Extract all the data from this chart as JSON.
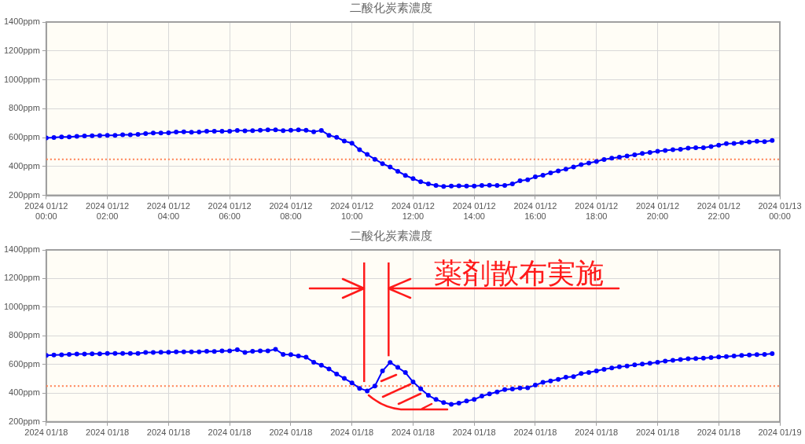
{
  "chart_data": [
    {
      "type": "line",
      "title": "二酸化炭素濃度",
      "x": [
        "2024-01-12T00:00",
        "2024-01-12T00:15",
        "2024-01-12T00:30",
        "2024-01-12T00:45",
        "2024-01-12T01:00",
        "2024-01-12T01:15",
        "2024-01-12T01:30",
        "2024-01-12T01:45",
        "2024-01-12T02:00",
        "2024-01-12T02:15",
        "2024-01-12T02:30",
        "2024-01-12T02:45",
        "2024-01-12T03:00",
        "2024-01-12T03:15",
        "2024-01-12T03:30",
        "2024-01-12T03:45",
        "2024-01-12T04:00",
        "2024-01-12T04:15",
        "2024-01-12T04:30",
        "2024-01-12T04:45",
        "2024-01-12T05:00",
        "2024-01-12T05:15",
        "2024-01-12T05:30",
        "2024-01-12T05:45",
        "2024-01-12T06:00",
        "2024-01-12T06:15",
        "2024-01-12T06:30",
        "2024-01-12T06:45",
        "2024-01-12T07:00",
        "2024-01-12T07:15",
        "2024-01-12T07:30",
        "2024-01-12T07:45",
        "2024-01-12T08:00",
        "2024-01-12T08:15",
        "2024-01-12T08:30",
        "2024-01-12T08:45",
        "2024-01-12T09:00",
        "2024-01-12T09:15",
        "2024-01-12T09:30",
        "2024-01-12T09:45",
        "2024-01-12T10:00",
        "2024-01-12T10:15",
        "2024-01-12T10:30",
        "2024-01-12T10:45",
        "2024-01-12T11:00",
        "2024-01-12T11:15",
        "2024-01-12T11:30",
        "2024-01-12T11:45",
        "2024-01-12T12:00",
        "2024-01-12T12:15",
        "2024-01-12T12:30",
        "2024-01-12T12:45",
        "2024-01-12T13:00",
        "2024-01-12T13:15",
        "2024-01-12T13:30",
        "2024-01-12T13:45",
        "2024-01-12T14:00",
        "2024-01-12T14:15",
        "2024-01-12T14:30",
        "2024-01-12T14:45",
        "2024-01-12T15:00",
        "2024-01-12T15:15",
        "2024-01-12T15:30",
        "2024-01-12T15:45",
        "2024-01-12T16:00",
        "2024-01-12T16:15",
        "2024-01-12T16:30",
        "2024-01-12T16:45",
        "2024-01-12T17:00",
        "2024-01-12T17:15",
        "2024-01-12T17:30",
        "2024-01-12T17:45",
        "2024-01-12T18:00",
        "2024-01-12T18:15",
        "2024-01-12T18:30",
        "2024-01-12T18:45",
        "2024-01-12T19:00",
        "2024-01-12T19:15",
        "2024-01-12T19:30",
        "2024-01-12T19:45",
        "2024-01-12T20:00",
        "2024-01-12T20:15",
        "2024-01-12T20:30",
        "2024-01-12T20:45",
        "2024-01-12T21:00",
        "2024-01-12T21:15",
        "2024-01-12T21:30",
        "2024-01-12T21:45",
        "2024-01-12T22:00",
        "2024-01-12T22:15",
        "2024-01-12T22:30",
        "2024-01-12T22:45",
        "2024-01-12T23:00",
        "2024-01-12T23:15",
        "2024-01-12T23:30",
        "2024-01-12T23:45"
      ],
      "series": [
        {
          "color": "#0000ff",
          "values": [
            597,
            600,
            605,
            605,
            609,
            611,
            612,
            614,
            616,
            616,
            620,
            620,
            622,
            627,
            631,
            631,
            633,
            638,
            640,
            637,
            638,
            644,
            644,
            644,
            644,
            650,
            646,
            648,
            651,
            653,
            653,
            648,
            651,
            653,
            651,
            640,
            650,
            616,
            602,
            576,
            561,
            516,
            483,
            450,
            420,
            396,
            367,
            338,
            316,
            294,
            279,
            268,
            262,
            264,
            266,
            264,
            264,
            268,
            270,
            268,
            268,
            279,
            301,
            308,
            328,
            339,
            356,
            369,
            382,
            396,
            413,
            424,
            435,
            448,
            457,
            464,
            473,
            481,
            490,
            497,
            505,
            510,
            516,
            519,
            527,
            530,
            530,
            538,
            547,
            558,
            560,
            565,
            569,
            574,
            572,
            580
          ]
        }
      ],
      "xlim": [
        "2024-01-12T00:00",
        "2024-01-13T00:00"
      ],
      "xticks": [
        {
          "value": "2024-01-12T00:00",
          "label": "2024 01/12\n00:00"
        },
        {
          "value": "2024-01-12T02:00",
          "label": "2024 01/12\n02:00"
        },
        {
          "value": "2024-01-12T04:00",
          "label": "2024 01/12\n04:00"
        },
        {
          "value": "2024-01-12T06:00",
          "label": "2024 01/12\n06:00"
        },
        {
          "value": "2024-01-12T08:00",
          "label": "2024 01/12\n08:00"
        },
        {
          "value": "2024-01-12T10:00",
          "label": "2024 01/12\n10:00"
        },
        {
          "value": "2024-01-12T12:00",
          "label": "2024 01/12\n12:00"
        },
        {
          "value": "2024-01-12T14:00",
          "label": "2024 01/12\n14:00"
        },
        {
          "value": "2024-01-12T16:00",
          "label": "2024 01/12\n16:00"
        },
        {
          "value": "2024-01-12T18:00",
          "label": "2024 01/12\n18:00"
        },
        {
          "value": "2024-01-12T20:00",
          "label": "2024 01/12\n20:00"
        },
        {
          "value": "2024-01-12T22:00",
          "label": "2024 01/12\n22:00"
        },
        {
          "value": "2024-01-13T00:00",
          "label": "2024 01/13\n00:00"
        }
      ],
      "ylim": [
        200,
        1400
      ],
      "yticks": [
        {
          "value": 200,
          "label": "200ppm"
        },
        {
          "value": 400,
          "label": "400ppm"
        },
        {
          "value": 600,
          "label": "600ppm"
        },
        {
          "value": 800,
          "label": "800ppm"
        },
        {
          "value": 1000,
          "label": "1000ppm"
        },
        {
          "value": 1200,
          "label": "1200ppm"
        },
        {
          "value": 1400,
          "label": "1400ppm"
        }
      ],
      "grid": true,
      "marker": "circle",
      "ref_lines": [
        {
          "axis": "y",
          "value": 450,
          "color": "#ff7f50",
          "line_style": "dotted"
        }
      ]
    },
    {
      "type": "line",
      "title": "二酸化炭素濃度",
      "x": [
        "2024-01-18T00:00",
        "2024-01-18T00:15",
        "2024-01-18T00:30",
        "2024-01-18T00:45",
        "2024-01-18T01:00",
        "2024-01-18T01:15",
        "2024-01-18T01:30",
        "2024-01-18T01:45",
        "2024-01-18T02:00",
        "2024-01-18T02:15",
        "2024-01-18T02:30",
        "2024-01-18T02:45",
        "2024-01-18T03:00",
        "2024-01-18T03:15",
        "2024-01-18T03:30",
        "2024-01-18T03:45",
        "2024-01-18T04:00",
        "2024-01-18T04:15",
        "2024-01-18T04:30",
        "2024-01-18T04:45",
        "2024-01-18T05:00",
        "2024-01-18T05:15",
        "2024-01-18T05:30",
        "2024-01-18T05:45",
        "2024-01-18T06:00",
        "2024-01-18T06:15",
        "2024-01-18T06:30",
        "2024-01-18T06:45",
        "2024-01-18T07:00",
        "2024-01-18T07:15",
        "2024-01-18T07:30",
        "2024-01-18T07:45",
        "2024-01-18T08:00",
        "2024-01-18T08:15",
        "2024-01-18T08:30",
        "2024-01-18T08:45",
        "2024-01-18T09:00",
        "2024-01-18T09:15",
        "2024-01-18T09:30",
        "2024-01-18T09:45",
        "2024-01-18T10:00",
        "2024-01-18T10:15",
        "2024-01-18T10:30",
        "2024-01-18T10:45",
        "2024-01-18T11:00",
        "2024-01-18T11:15",
        "2024-01-18T11:30",
        "2024-01-18T11:45",
        "2024-01-18T12:00",
        "2024-01-18T12:15",
        "2024-01-18T12:30",
        "2024-01-18T12:45",
        "2024-01-18T13:00",
        "2024-01-18T13:15",
        "2024-01-18T13:30",
        "2024-01-18T13:45",
        "2024-01-18T14:00",
        "2024-01-18T14:15",
        "2024-01-18T14:30",
        "2024-01-18T14:45",
        "2024-01-18T15:00",
        "2024-01-18T15:15",
        "2024-01-18T15:30",
        "2024-01-18T15:45",
        "2024-01-18T16:00",
        "2024-01-18T16:15",
        "2024-01-18T16:30",
        "2024-01-18T16:45",
        "2024-01-18T17:00",
        "2024-01-18T17:15",
        "2024-01-18T17:30",
        "2024-01-18T17:45",
        "2024-01-18T18:00",
        "2024-01-18T18:15",
        "2024-01-18T18:30",
        "2024-01-18T18:45",
        "2024-01-18T19:00",
        "2024-01-18T19:15",
        "2024-01-18T19:30",
        "2024-01-18T19:45",
        "2024-01-18T20:00",
        "2024-01-18T20:15",
        "2024-01-18T20:30",
        "2024-01-18T20:45",
        "2024-01-18T21:00",
        "2024-01-18T21:15",
        "2024-01-18T21:30",
        "2024-01-18T21:45",
        "2024-01-18T22:00",
        "2024-01-18T22:15",
        "2024-01-18T22:30",
        "2024-01-18T22:45",
        "2024-01-18T23:00",
        "2024-01-18T23:15",
        "2024-01-18T23:30",
        "2024-01-18T23:45"
      ],
      "series": [
        {
          "color": "#0000ff",
          "values": [
            664,
            666,
            668,
            671,
            673,
            673,
            675,
            675,
            677,
            677,
            678,
            678,
            678,
            684,
            684,
            686,
            686,
            689,
            688,
            689,
            689,
            693,
            691,
            695,
            695,
            704,
            684,
            693,
            695,
            695,
            706,
            671,
            669,
            660,
            651,
            616,
            595,
            569,
            534,
            503,
            472,
            434,
            416,
            450,
            555,
            615,
            580,
            544,
            478,
            431,
            385,
            356,
            335,
            322,
            331,
            345,
            356,
            380,
            395,
            409,
            425,
            429,
            436,
            438,
            456,
            476,
            485,
            496,
            511,
            516,
            538,
            544,
            555,
            567,
            576,
            584,
            589,
            598,
            604,
            609,
            616,
            624,
            629,
            635,
            640,
            642,
            645,
            649,
            653,
            655,
            660,
            664,
            667,
            669,
            671,
            676
          ]
        }
      ],
      "xlim": [
        "2024-01-18T00:00",
        "2024-01-19T00:00"
      ],
      "xticks": [
        {
          "value": "2024-01-18T00:00",
          "label": "2024 01/18"
        },
        {
          "value": "2024-01-18T02:00",
          "label": "2024 01/18"
        },
        {
          "value": "2024-01-18T04:00",
          "label": "2024 01/18"
        },
        {
          "value": "2024-01-18T06:00",
          "label": "2024 01/18"
        },
        {
          "value": "2024-01-18T08:00",
          "label": "2024 01/18"
        },
        {
          "value": "2024-01-18T10:00",
          "label": "2024 01/18"
        },
        {
          "value": "2024-01-18T12:00",
          "label": "2024 01/18"
        },
        {
          "value": "2024-01-18T14:00",
          "label": "2024 01/18"
        },
        {
          "value": "2024-01-18T16:00",
          "label": "2024 01/18"
        },
        {
          "value": "2024-01-18T18:00",
          "label": "2024 01/18"
        },
        {
          "value": "2024-01-18T20:00",
          "label": "2024 01/18"
        },
        {
          "value": "2024-01-18T22:00",
          "label": "2024 01/18"
        },
        {
          "value": "2024-01-19T00:00",
          "label": "2024 01/19"
        }
      ],
      "ylim": [
        200,
        1400
      ],
      "yticks": [
        {
          "value": 200,
          "label": "200ppm"
        },
        {
          "value": 400,
          "label": "400ppm"
        },
        {
          "value": 600,
          "label": "600ppm"
        },
        {
          "value": 800,
          "label": "800ppm"
        },
        {
          "value": 1000,
          "label": "1000ppm"
        },
        {
          "value": 1200,
          "label": "1200ppm"
        },
        {
          "value": 1400,
          "label": "1400ppm"
        }
      ],
      "grid": true,
      "marker": "circle",
      "ref_lines": [
        {
          "axis": "y",
          "value": 450,
          "color": "#ff7f50",
          "line_style": "dotted"
        },
        {
          "axis": "x",
          "value": "2024-01-18T10:24",
          "color": "#ff1a1a"
        },
        {
          "axis": "x",
          "value": "2024-01-18T11:12",
          "color": "#ff1a1a",
          "label": "薬剤散布実施"
        }
      ]
    }
  ]
}
